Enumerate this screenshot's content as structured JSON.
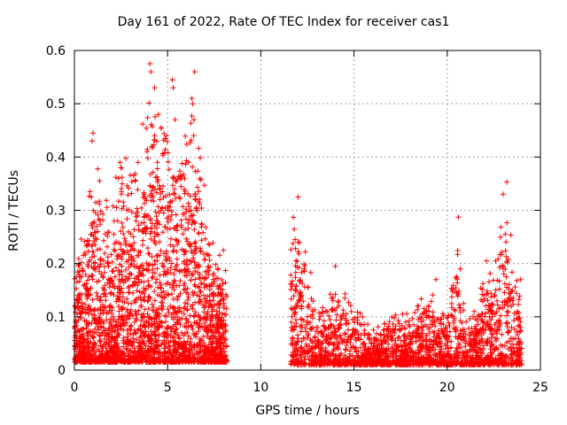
{
  "chart_data": {
    "type": "scatter",
    "title": "Day 161 of 2022, Rate Of TEC Index for receiver cas1",
    "xlabel": "GPS time / hours",
    "ylabel": "ROTI / TECUs",
    "xlim": [
      0,
      25
    ],
    "ylim": [
      0,
      0.6
    ],
    "xticks": [
      "0",
      "5",
      "10",
      "15",
      "20",
      "25"
    ],
    "yticks": [
      "0",
      "0.1",
      "0.2",
      "0.3",
      "0.4",
      "0.5",
      "0.6"
    ],
    "grid": true,
    "marker": "+",
    "color": "#ff0000",
    "data_gap": [
      8.2,
      11.6
    ],
    "envelope": {
      "x": [
        0.0,
        0.5,
        1.0,
        1.5,
        2.0,
        2.5,
        3.0,
        3.5,
        4.0,
        4.5,
        5.0,
        5.5,
        6.0,
        6.5,
        7.0,
        7.5,
        8.0,
        8.2
      ],
      "max": [
        0.22,
        0.26,
        0.44,
        0.36,
        0.33,
        0.42,
        0.4,
        0.45,
        0.57,
        0.47,
        0.54,
        0.45,
        0.5,
        0.56,
        0.34,
        0.25,
        0.24,
        0.18
      ]
    },
    "envelope2": {
      "x": [
        11.6,
        12.0,
        12.5,
        13.0,
        13.5,
        14.0,
        14.5,
        15.0,
        15.5,
        16.0,
        17.0,
        18.0,
        19.0,
        20.0,
        20.5,
        21.0,
        21.5,
        22.0,
        22.5,
        23.0,
        23.3,
        23.6,
        24.0
      ],
      "max": [
        0.32,
        0.31,
        0.24,
        0.12,
        0.14,
        0.19,
        0.15,
        0.13,
        0.11,
        0.09,
        0.12,
        0.11,
        0.17,
        0.13,
        0.28,
        0.12,
        0.12,
        0.2,
        0.2,
        0.33,
        0.35,
        0.22,
        0.21
      ]
    },
    "peaks": [
      [
        4.05,
        0.575
      ],
      [
        4.1,
        0.56
      ],
      [
        4.3,
        0.53
      ],
      [
        5.25,
        0.545
      ],
      [
        5.3,
        0.53
      ],
      [
        6.45,
        0.56
      ],
      [
        6.3,
        0.51
      ],
      [
        6.35,
        0.5
      ],
      [
        1.0,
        0.445
      ],
      [
        0.95,
        0.43
      ],
      [
        4.5,
        0.48
      ],
      [
        4.3,
        0.44
      ],
      [
        5.4,
        0.47
      ],
      [
        6.4,
        0.44
      ],
      [
        3.9,
        0.41
      ],
      [
        12.0,
        0.325
      ],
      [
        20.6,
        0.287
      ],
      [
        23.2,
        0.353
      ],
      [
        23.0,
        0.33
      ],
      [
        14.0,
        0.195
      ],
      [
        19.4,
        0.17
      ],
      [
        22.1,
        0.205
      ],
      [
        22.6,
        0.205
      ],
      [
        20.7,
        0.19
      ],
      [
        2.5,
        0.38
      ]
    ]
  }
}
